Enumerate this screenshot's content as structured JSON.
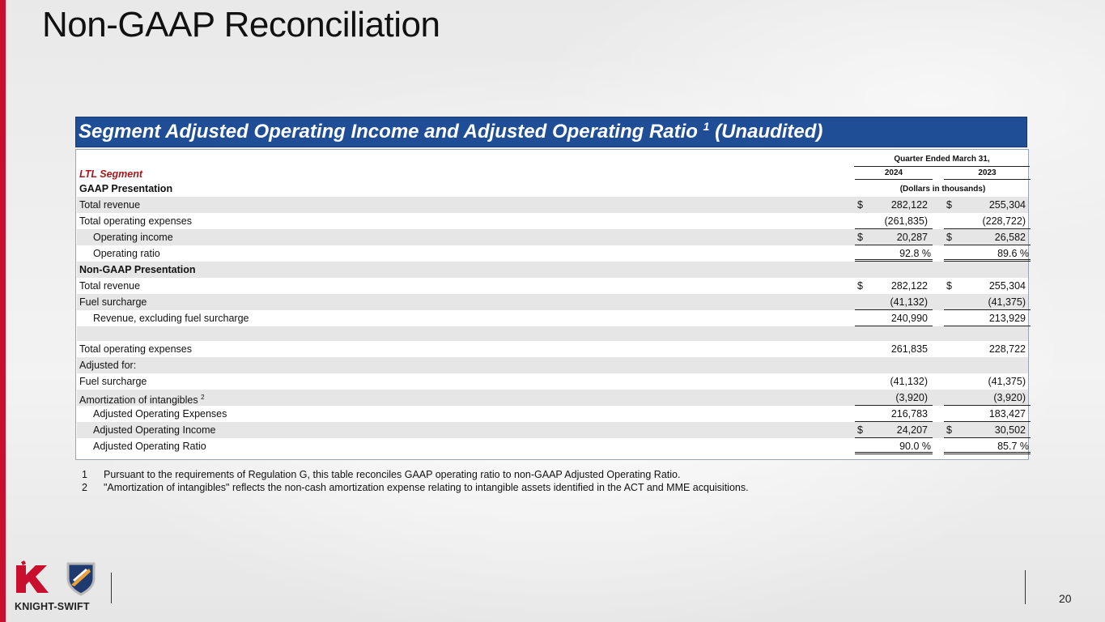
{
  "title": "Non-GAAP Reconciliation",
  "banner": {
    "text": "Segment Adjusted Operating Income and Adjusted Operating Ratio",
    "sup": "1",
    "suffix": " (Unaudited)"
  },
  "table": {
    "segment_label": "LTL Segment",
    "period_header": "Quarter Ended March 31,",
    "col1_year": "2024",
    "col2_year": "2023",
    "units_label": "(Dollars in thousands)",
    "gaap_heading": "GAAP Presentation",
    "rows": [
      {
        "label": "Total revenue",
        "d1": "$",
        "v1": "282,122",
        "d2": "$",
        "v2": "255,304"
      },
      {
        "label": "Total operating expenses",
        "d1": "",
        "v1": "(261,835)",
        "d2": "",
        "v2": "(228,722)"
      },
      {
        "label": "Operating income",
        "d1": "$",
        "v1": "20,287",
        "d2": "$",
        "v2": "26,582"
      },
      {
        "label": "Operating ratio",
        "d1": "",
        "v1": "92.8 %",
        "d2": "",
        "v2": "89.6 %"
      },
      {
        "label": "Non-GAAP Presentation",
        "d1": "",
        "v1": "",
        "d2": "",
        "v2": ""
      },
      {
        "label": "Total revenue",
        "d1": "$",
        "v1": "282,122",
        "d2": "$",
        "v2": "255,304"
      },
      {
        "label": "Fuel surcharge",
        "d1": "",
        "v1": "(41,132)",
        "d2": "",
        "v2": "(41,375)"
      },
      {
        "label": "Revenue, excluding fuel surcharge",
        "d1": "",
        "v1": "240,990",
        "d2": "",
        "v2": "213,929"
      },
      {
        "label": "Total operating expenses",
        "d1": "",
        "v1": "261,835",
        "d2": "",
        "v2": "228,722"
      },
      {
        "label": "Adjusted for:",
        "d1": "",
        "v1": "",
        "d2": "",
        "v2": ""
      },
      {
        "label": "Fuel surcharge",
        "d1": "",
        "v1": "(41,132)",
        "d2": "",
        "v2": "(41,375)"
      },
      {
        "label": "Amortization of intangibles",
        "sup": "2",
        "d1": "",
        "v1": "(3,920)",
        "d2": "",
        "v2": "(3,920)"
      },
      {
        "label": "Adjusted Operating Expenses",
        "d1": "",
        "v1": "216,783",
        "d2": "",
        "v2": "183,427"
      },
      {
        "label": "Adjusted Operating Income",
        "d1": "$",
        "v1": "24,207",
        "d2": "$",
        "v2": "30,502"
      },
      {
        "label": "Adjusted Operating Ratio",
        "d1": "",
        "v1": "90.0 %",
        "d2": "",
        "v2": "85.7 %"
      }
    ]
  },
  "footnotes": [
    {
      "n": "1",
      "text": "Pursuant to the requirements of Regulation G, this table reconciles GAAP operating ratio to non-GAAP Adjusted Operating Ratio."
    },
    {
      "n": "2",
      "text": "\"Amortization of intangibles\" reflects the non-cash amortization expense relating to intangible assets identified in the ACT and MME acquisitions."
    }
  ],
  "logo_text": "KNIGHT-SWIFT",
  "page_number": "20",
  "colors": {
    "brand_red": "#c8102e",
    "banner_blue": "#1f4e96",
    "segment_red": "#a5191e"
  }
}
